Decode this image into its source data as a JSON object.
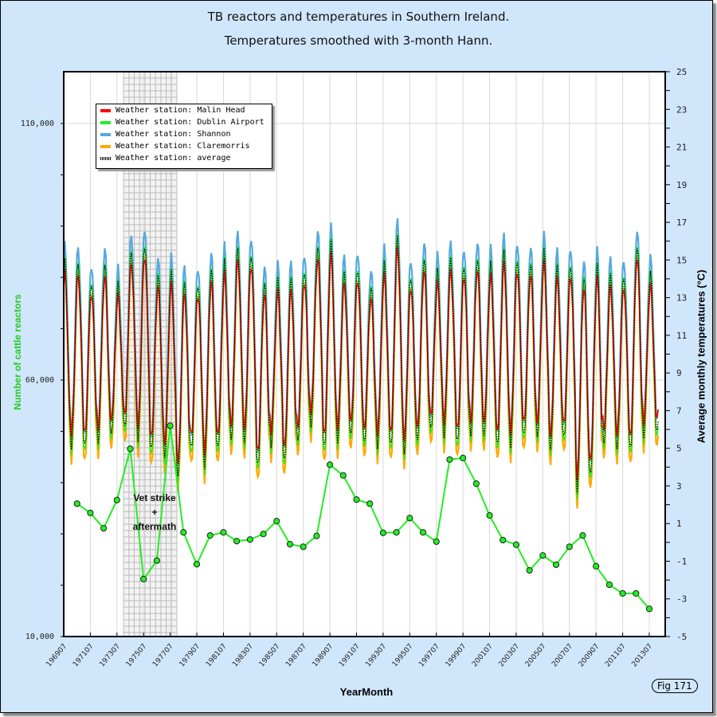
{
  "chart_data": {
    "type": "line",
    "title": "TB reactors and temperatures in Southern Ireland.",
    "subtitle": "Temperatures smoothed with 3-month Hann.",
    "xlabel": "YearMonth",
    "ylabel_left": "Number of cattle reactors",
    "ylabel_right": "Average monthly temperatures (°C)",
    "x_range": [
      196907,
      201407
    ],
    "x_ticks": [
      "196907",
      "197107",
      "197307",
      "197507",
      "197707",
      "197907",
      "198107",
      "198307",
      "198507",
      "198707",
      "198907",
      "199107",
      "199307",
      "199507",
      "199707",
      "199907",
      "200107",
      "200307",
      "200507",
      "200707",
      "200907",
      "201107",
      "201307"
    ],
    "y_left_range": [
      10000,
      110000
    ],
    "y_left_ticks": [
      "10,000",
      "60,000",
      "110,000"
    ],
    "y_right_range": [
      -5,
      25
    ],
    "y_right_ticks": [
      "-5",
      "-3",
      "-1",
      "1",
      "3",
      "5",
      "7",
      "9",
      "11",
      "13",
      "15",
      "17",
      "19",
      "21",
      "23",
      "25"
    ],
    "grid": true,
    "legend_position": "top-left",
    "legend": [
      {
        "name": "Weather station: Malin Head",
        "color": "#ff0000",
        "style": "solid"
      },
      {
        "name": "Weather station: Dublin Airport",
        "color": "#22ee22",
        "style": "solid"
      },
      {
        "name": "Weather station: Shannon",
        "color": "#55aadd",
        "style": "solid"
      },
      {
        "name": "Weather station: Claremorris",
        "color": "#ffaa00",
        "style": "solid"
      },
      {
        "name": "Weather station: average",
        "color": "#000000",
        "style": "dotted"
      }
    ],
    "shaded_band": {
      "from": 197401,
      "to": 197801,
      "label": [
        "Vet strike",
        "+",
        "aftermath"
      ]
    },
    "reactors": {
      "name": "Number of cattle reactors",
      "axis": "left",
      "color": "#22ee22",
      "years": [
        1970,
        1971,
        1972,
        1973,
        1974,
        1975,
        1976,
        1977,
        1978,
        1979,
        1980,
        1981,
        1982,
        1983,
        1984,
        1985,
        1986,
        1987,
        1988,
        1989,
        1990,
        1991,
        1992,
        1993,
        1994,
        1995,
        1996,
        1997,
        1998,
        1999,
        2000,
        2001,
        2002,
        2003,
        2004,
        2005,
        2006,
        2007,
        2008,
        2009,
        2010,
        2011,
        2012,
        2013
      ],
      "values": [
        35900,
        34100,
        31100,
        36600,
        46600,
        21200,
        24800,
        51100,
        30300,
        24100,
        29700,
        30300,
        28600,
        28900,
        30000,
        32500,
        28000,
        27500,
        29600,
        43500,
        41400,
        36700,
        35900,
        30200,
        30300,
        33100,
        30300,
        28500,
        44500,
        44800,
        39800,
        33600,
        28800,
        27900,
        22900,
        25800,
        24000,
        27500,
        29700,
        23700,
        20100,
        18400,
        18400,
        15400
      ]
    },
    "temperature_average_summer_peak": [
      14.6,
      14.6,
      13.7,
      14.5,
      13.4,
      15.2,
      15.7,
      14.0,
      14.0,
      13.6,
      13.6,
      14.3,
      14.6,
      15.4,
      15.2,
      13.6,
      13.6,
      13.8,
      14.3,
      15.5,
      15.6,
      14.1,
      14.4,
      13.4,
      14.5,
      16.0,
      14.0,
      14.9,
      14.1,
      14.8,
      14.6,
      14.9,
      14.5,
      15.2,
      14.9,
      14.7,
      15.2,
      14.4,
      14.6,
      14.0,
      14.4,
      13.9,
      14.0,
      15.6,
      14.0
    ],
    "temperature_average_winter_trough": [
      4.5,
      5.2,
      5.0,
      5.4,
      5.8,
      6.0,
      5.6,
      4.8,
      4.6,
      3.6,
      4.9,
      4.2,
      4.9,
      5.5,
      5.4,
      4.0,
      5.3,
      4.3,
      5.4,
      6.3,
      4.9,
      5.5,
      5.7,
      5.3,
      5.2,
      5.0,
      4.9,
      5.4,
      6.0,
      5.8,
      5.2,
      5.8,
      5.7,
      5.1,
      5.3,
      5.6,
      5.7,
      5.0,
      5.5,
      2.9,
      3.5,
      5.3,
      5.1,
      4.8,
      5.8
    ]
  },
  "figure_label": "Fig 171"
}
